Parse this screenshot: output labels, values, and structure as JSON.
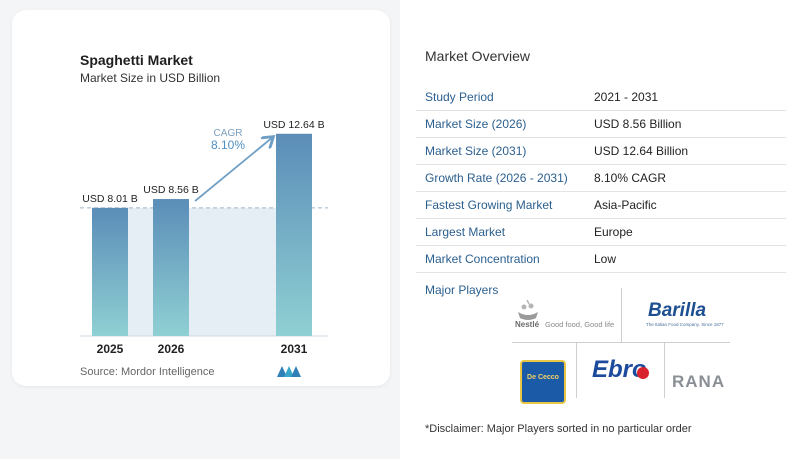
{
  "chart": {
    "title": "Spaghetti Market",
    "subtitle": "Market Size in USD Billion",
    "source": "Source:  Mordor Intelligence",
    "cagr_label": "CAGR",
    "cagr_value": "8.10%"
  },
  "chart_data": {
    "type": "bar",
    "categories": [
      "2025",
      "2026",
      "2031"
    ],
    "values": [
      8.01,
      8.56,
      12.64
    ],
    "value_labels": [
      "USD 8.01 B",
      "USD 8.56 B",
      "USD 12.64 B"
    ],
    "ylim": [
      0,
      13.5
    ],
    "colors": {
      "bar_top": "#5b8db8",
      "bar_bottom": "#8fd0d3",
      "band": "#e6eef5",
      "arrow": "#6e9ec4",
      "cagr": "#4f8fc1"
    }
  },
  "overview": {
    "title": "Market Overview",
    "rows": [
      {
        "key": "Study Period",
        "value": "2021 - 2031"
      },
      {
        "key": "Market Size (2026)",
        "value": "USD 8.56 Billion"
      },
      {
        "key": "Market Size (2031)",
        "value": "USD 12.64 Billion"
      },
      {
        "key": "Growth Rate (2026 - 2031)",
        "value": "8.10% CAGR"
      },
      {
        "key": "Fastest Growing Market",
        "value": "Asia-Pacific"
      },
      {
        "key": "Largest Market",
        "value": "Europe"
      },
      {
        "key": "Market Concentration",
        "value": "Low"
      }
    ]
  },
  "players": {
    "title": "Major Players",
    "nestle": {
      "name": "Nestlé",
      "tagline": "Good food, Good life"
    },
    "barilla": {
      "name": "Barilla",
      "tagline": "The Italian Food Company. Since 1877"
    },
    "dececco": {
      "name": "De Cecco"
    },
    "ebro": {
      "name": "Ebro"
    },
    "rana": {
      "name": "RANA"
    }
  },
  "disclaimer": "*Disclaimer: Major Players sorted in no particular order"
}
